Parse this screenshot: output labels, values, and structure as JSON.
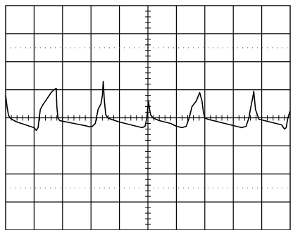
{
  "chart_data": {
    "type": "line",
    "title": "",
    "xlabel": "",
    "ylabel": "",
    "grid": true,
    "grid_divisions": {
      "x": 10,
      "y": 8
    },
    "minor_ticks_per_division": 5,
    "xlim": [
      0,
      10
    ],
    "ylim": [
      -4,
      4
    ],
    "series": [
      {
        "values_note": "",
        "x": [
          0.0,
          0.05,
          0.1,
          0.15,
          0.22,
          0.3,
          0.4,
          0.55,
          0.7,
          0.85,
          1.0,
          1.08,
          1.14,
          1.18,
          1.22,
          1.3,
          1.4,
          1.5,
          1.6,
          1.7,
          1.78,
          1.8,
          1.84,
          1.9,
          2.0,
          2.2,
          2.4,
          2.6,
          2.8,
          2.95,
          3.05,
          3.15,
          3.25,
          3.35,
          3.4,
          3.43,
          3.47,
          3.52,
          3.6,
          3.7,
          3.85,
          4.0,
          4.2,
          4.4,
          4.6,
          4.8,
          4.9,
          4.96,
          5.02,
          5.06,
          5.1,
          5.18,
          5.28,
          5.4,
          5.6,
          5.8,
          6.0,
          6.2,
          6.35,
          6.45,
          6.55,
          6.7,
          6.82,
          6.9,
          6.95,
          7.0,
          7.1,
          7.3,
          7.5,
          7.7,
          7.9,
          8.1,
          8.3,
          8.45,
          8.55,
          8.62,
          8.68,
          8.72,
          8.78,
          8.9,
          9.1,
          9.3,
          9.5,
          9.7,
          9.8,
          9.86,
          9.92,
          10.0
        ],
        "values": [
          0.8,
          0.4,
          0.1,
          0.0,
          -0.05,
          -0.1,
          -0.15,
          -0.2,
          -0.25,
          -0.3,
          -0.35,
          -0.45,
          -0.35,
          0.0,
          0.3,
          0.45,
          0.6,
          0.75,
          0.9,
          1.0,
          1.05,
          0.4,
          0.0,
          -0.1,
          -0.12,
          -0.16,
          -0.2,
          -0.24,
          -0.28,
          -0.32,
          -0.3,
          -0.2,
          0.3,
          0.5,
          0.8,
          1.3,
          0.6,
          0.1,
          0.0,
          -0.05,
          -0.1,
          -0.15,
          -0.2,
          -0.25,
          -0.3,
          -0.35,
          -0.3,
          0.0,
          0.6,
          0.3,
          0.1,
          0.0,
          -0.05,
          -0.1,
          -0.15,
          -0.2,
          -0.3,
          -0.35,
          -0.3,
          0.0,
          0.4,
          0.6,
          0.9,
          0.6,
          0.2,
          0.0,
          -0.05,
          -0.1,
          -0.15,
          -0.2,
          -0.25,
          -0.3,
          -0.35,
          -0.3,
          0.0,
          0.4,
          0.7,
          0.95,
          0.3,
          -0.05,
          -0.1,
          -0.15,
          -0.2,
          -0.25,
          -0.4,
          -0.35,
          0.0,
          0.25
        ]
      }
    ]
  }
}
